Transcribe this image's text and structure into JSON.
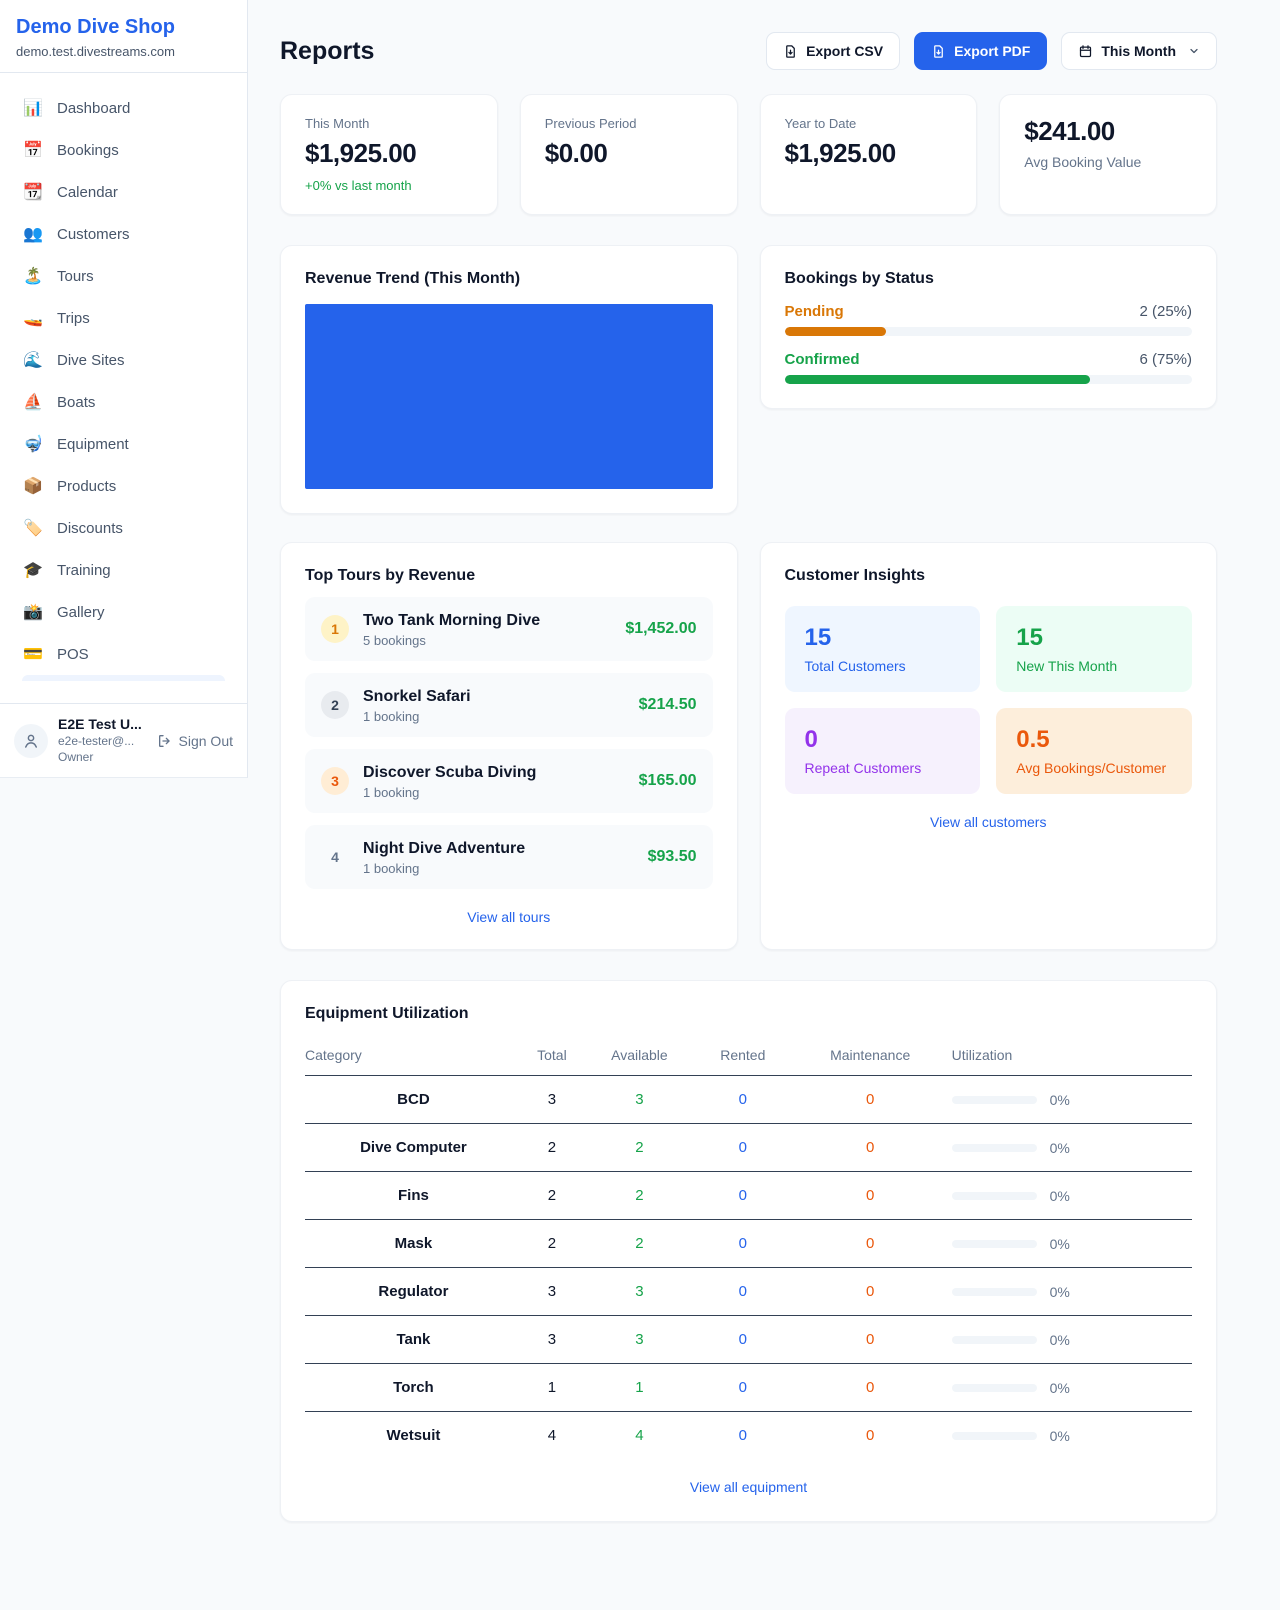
{
  "brand": {
    "name": "Demo Dive Shop",
    "domain": "demo.test.divestreams.com"
  },
  "sidebar": {
    "items": [
      {
        "icon": "📊",
        "label": "Dashboard"
      },
      {
        "icon": "📅",
        "label": "Bookings"
      },
      {
        "icon": "📆",
        "label": "Calendar"
      },
      {
        "icon": "👥",
        "label": "Customers"
      },
      {
        "icon": "🏝️",
        "label": "Tours"
      },
      {
        "icon": "🚤",
        "label": "Trips"
      },
      {
        "icon": "🌊",
        "label": "Dive Sites"
      },
      {
        "icon": "⛵",
        "label": "Boats"
      },
      {
        "icon": "🤿",
        "label": "Equipment"
      },
      {
        "icon": "📦",
        "label": "Products"
      },
      {
        "icon": "🏷️",
        "label": "Discounts"
      },
      {
        "icon": "🎓",
        "label": "Training"
      },
      {
        "icon": "📸",
        "label": "Gallery"
      },
      {
        "icon": "💳",
        "label": "POS"
      }
    ]
  },
  "user": {
    "name": "E2E Test U...",
    "email": "e2e-tester@...",
    "role": "Owner",
    "sign_out": "Sign Out"
  },
  "header": {
    "title": "Reports",
    "export_csv": "Export CSV",
    "export_pdf": "Export PDF",
    "period": "This Month"
  },
  "stats": [
    {
      "label": "This Month",
      "value": "$1,925.00",
      "delta": "+0% vs last month"
    },
    {
      "label": "Previous Period",
      "value": "$0.00"
    },
    {
      "label": "Year to Date",
      "value": "$1,925.00"
    },
    {
      "label": "Avg Booking Value",
      "value": "$241.00"
    }
  ],
  "revenue_trend": {
    "title": "Revenue Trend (This Month)",
    "color": "#2563eb"
  },
  "bookings_status": {
    "title": "Bookings by Status",
    "rows": [
      {
        "label": "Pending",
        "count": "2 (25%)",
        "pct": 25,
        "color": "#d97706"
      },
      {
        "label": "Confirmed",
        "count": "6 (75%)",
        "pct": 75,
        "color": "#16a34a"
      }
    ]
  },
  "top_tours": {
    "title": "Top Tours by Revenue",
    "rows": [
      {
        "rank": "1",
        "name": "Two Tank Morning Dive",
        "bookings": "5 bookings",
        "revenue": "$1,452.00",
        "badge_bg": "#fef3c7",
        "badge_fg": "#d97706"
      },
      {
        "rank": "2",
        "name": "Snorkel Safari",
        "bookings": "1 booking",
        "revenue": "$214.50",
        "badge_bg": "#e8ebef",
        "badge_fg": "#334155"
      },
      {
        "rank": "3",
        "name": "Discover Scuba Diving",
        "bookings": "1 booking",
        "revenue": "$165.00",
        "badge_bg": "#ffedd5",
        "badge_fg": "#ea580c"
      },
      {
        "rank": "4",
        "name": "Night Dive Adventure",
        "bookings": "1 booking",
        "revenue": "$93.50",
        "badge_bg": "transparent",
        "badge_fg": "#64748b"
      }
    ],
    "link": "View all tours"
  },
  "customer_insights": {
    "title": "Customer Insights",
    "tiles": [
      {
        "value": "15",
        "label": "Total Customers",
        "fg": "#2563eb",
        "bg": "#eff6ff"
      },
      {
        "value": "15",
        "label": "New This Month",
        "fg": "#16a34a",
        "bg": "#ecfdf5"
      },
      {
        "value": "0",
        "label": "Repeat Customers",
        "fg": "#9333ea",
        "bg": "#f6f1fd"
      },
      {
        "value": "0.5",
        "label": "Avg Bookings/Customer",
        "fg": "#ea580c",
        "bg": "#fdeedb"
      }
    ],
    "link": "View all customers"
  },
  "equipment": {
    "title": "Equipment Utilization",
    "columns": [
      "Category",
      "Total",
      "Available",
      "Rented",
      "Maintenance",
      "Utilization"
    ],
    "rows": [
      {
        "category": "BCD",
        "total": "3",
        "available": "3",
        "rented": "0",
        "maintenance": "0",
        "utilization": "0%"
      },
      {
        "category": "Dive Computer",
        "total": "2",
        "available": "2",
        "rented": "0",
        "maintenance": "0",
        "utilization": "0%"
      },
      {
        "category": "Fins",
        "total": "2",
        "available": "2",
        "rented": "0",
        "maintenance": "0",
        "utilization": "0%"
      },
      {
        "category": "Mask",
        "total": "2",
        "available": "2",
        "rented": "0",
        "maintenance": "0",
        "utilization": "0%"
      },
      {
        "category": "Regulator",
        "total": "3",
        "available": "3",
        "rented": "0",
        "maintenance": "0",
        "utilization": "0%"
      },
      {
        "category": "Tank",
        "total": "3",
        "available": "3",
        "rented": "0",
        "maintenance": "0",
        "utilization": "0%"
      },
      {
        "category": "Torch",
        "total": "1",
        "available": "1",
        "rented": "0",
        "maintenance": "0",
        "utilization": "0%"
      },
      {
        "category": "Wetsuit",
        "total": "4",
        "available": "4",
        "rented": "0",
        "maintenance": "0",
        "utilization": "0%"
      }
    ],
    "link": "View all equipment"
  }
}
